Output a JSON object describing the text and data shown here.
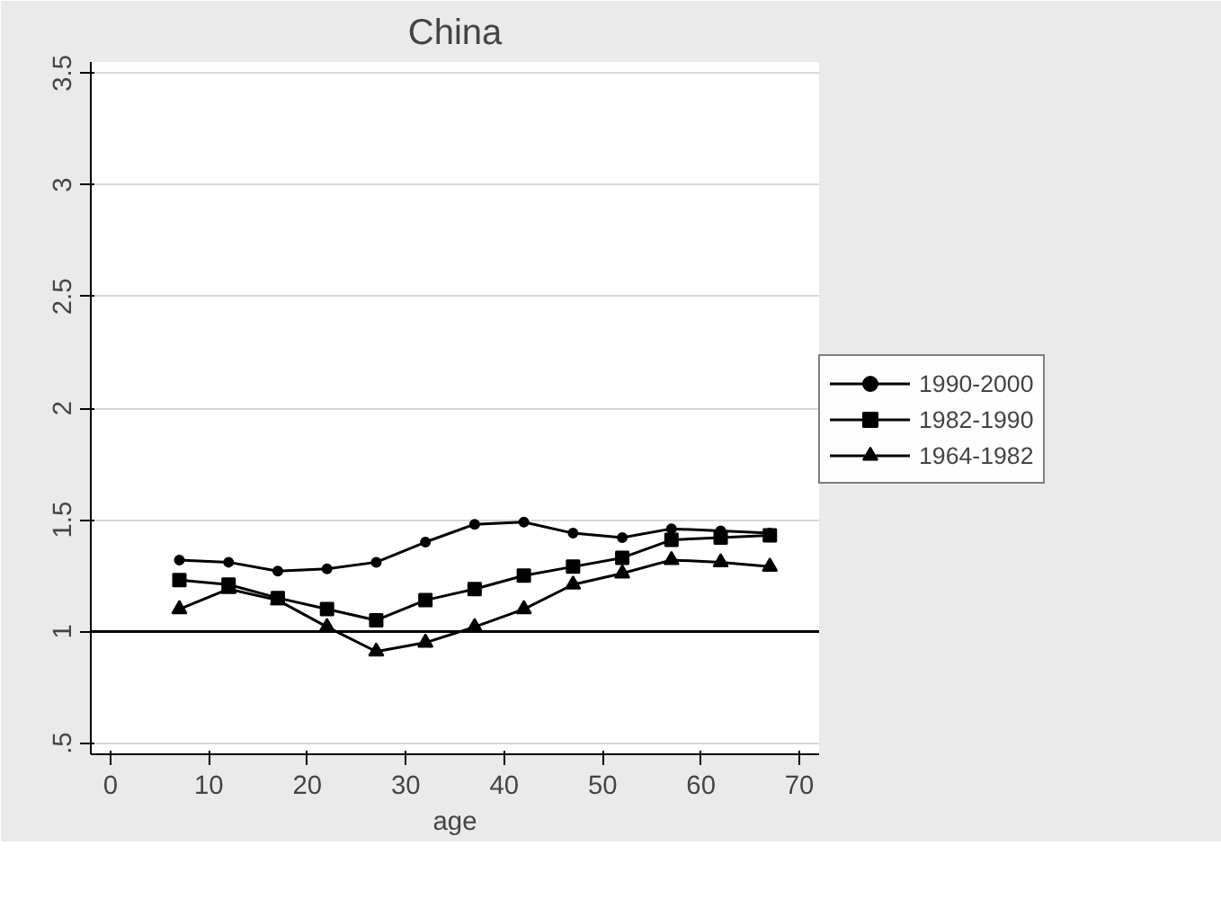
{
  "chart_data": {
    "type": "line",
    "title": "China",
    "xlabel": "age",
    "x": [
      7,
      12,
      17,
      22,
      27,
      32,
      37,
      42,
      47,
      52,
      57,
      62,
      67
    ],
    "series": [
      {
        "name": "1990-2000",
        "color": "#000000",
        "marker": "circle",
        "values": [
          1.32,
          1.31,
          1.27,
          1.28,
          1.31,
          1.4,
          1.48,
          1.49,
          1.44,
          1.42,
          1.46,
          1.45,
          1.44
        ]
      },
      {
        "name": "1982-1990",
        "color": "#000000",
        "marker": "square",
        "values": [
          1.23,
          1.21,
          1.15,
          1.1,
          1.05,
          1.14,
          1.19,
          1.25,
          1.29,
          1.33,
          1.41,
          1.42,
          1.43
        ]
      },
      {
        "name": "1964-1982",
        "color": "#000000",
        "marker": "triangle",
        "values": [
          1.1,
          1.19,
          1.14,
          1.02,
          0.91,
          0.95,
          1.02,
          1.1,
          1.21,
          1.26,
          1.32,
          1.31,
          1.29
        ]
      }
    ],
    "xlim": [
      -2,
      72
    ],
    "xticks": [
      0,
      10,
      20,
      30,
      40,
      50,
      60,
      70
    ],
    "ylim": [
      0.45,
      3.55
    ],
    "yticks": [
      {
        "value": 0.5,
        "label": ".5"
      },
      1,
      1.5,
      2,
      2.5,
      3,
      3.5
    ],
    "ref_lines": [
      {
        "axis": "y",
        "value": 1,
        "color": "#000000"
      }
    ],
    "grid": "y",
    "legend": "right",
    "line_style": "solid"
  }
}
